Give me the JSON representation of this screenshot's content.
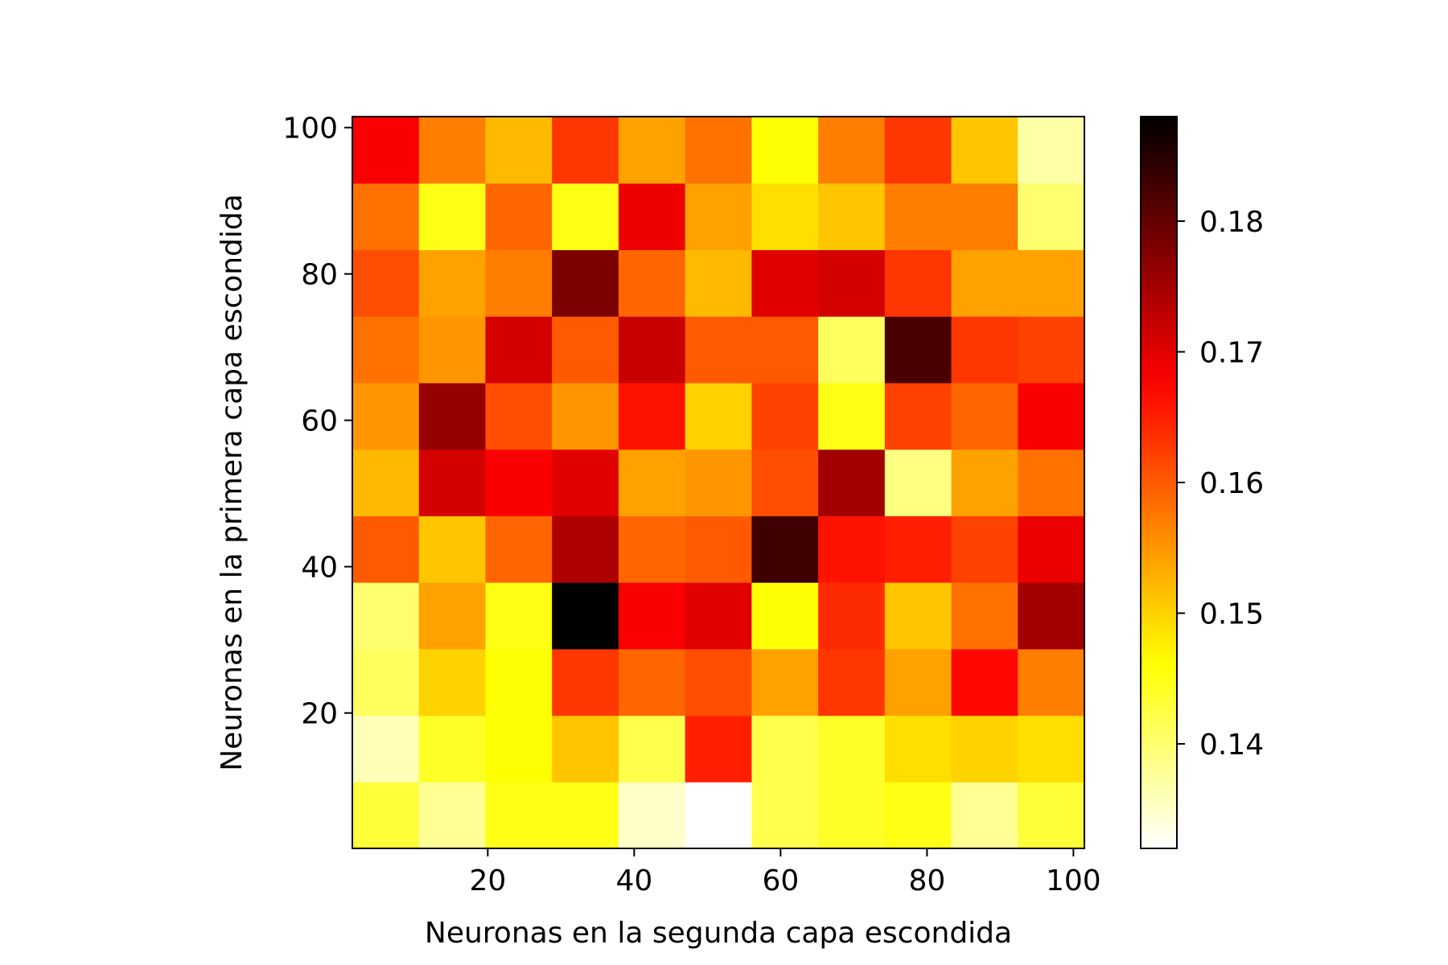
{
  "chart_data": {
    "type": "heatmap",
    "title": "",
    "xlabel": "Neuronas en la segunda capa escondida",
    "ylabel": "Neuronas en la primera capa escondida",
    "x": [
      10,
      19,
      28,
      37,
      46,
      55,
      64,
      73,
      82,
      91,
      100
    ],
    "y": [
      10,
      19,
      28,
      37,
      46,
      55,
      64,
      73,
      82,
      91,
      100
    ],
    "xlim": [
      1.5,
      101.5
    ],
    "ylim": [
      1.5,
      101.5
    ],
    "xticks": [
      20,
      40,
      60,
      80,
      100
    ],
    "yticks": [
      20,
      40,
      60,
      80,
      100
    ],
    "colormap": "hot_r",
    "colorbar": {
      "vmin": 0.132,
      "vmax": 0.188,
      "ticks": [
        0.14,
        0.15,
        0.16,
        0.17,
        0.18
      ]
    },
    "z": [
      [
        0.143,
        0.138,
        0.145,
        0.145,
        0.135,
        0.132,
        0.142,
        0.144,
        0.145,
        0.138,
        0.143
      ],
      [
        0.136,
        0.144,
        0.146,
        0.151,
        0.142,
        0.165,
        0.142,
        0.144,
        0.149,
        0.15,
        0.149
      ],
      [
        0.141,
        0.15,
        0.146,
        0.163,
        0.159,
        0.161,
        0.154,
        0.163,
        0.154,
        0.167,
        0.157
      ],
      [
        0.14,
        0.154,
        0.145,
        0.188,
        0.168,
        0.17,
        0.146,
        0.164,
        0.151,
        0.158,
        0.175
      ],
      [
        0.16,
        0.151,
        0.159,
        0.174,
        0.159,
        0.16,
        0.183,
        0.166,
        0.165,
        0.162,
        0.169
      ],
      [
        0.152,
        0.171,
        0.168,
        0.17,
        0.154,
        0.155,
        0.161,
        0.175,
        0.139,
        0.154,
        0.158
      ],
      [
        0.155,
        0.176,
        0.161,
        0.155,
        0.166,
        0.15,
        0.162,
        0.145,
        0.162,
        0.159,
        0.168
      ],
      [
        0.158,
        0.155,
        0.171,
        0.16,
        0.172,
        0.16,
        0.16,
        0.141,
        0.182,
        0.163,
        0.162
      ],
      [
        0.161,
        0.154,
        0.157,
        0.178,
        0.159,
        0.152,
        0.17,
        0.171,
        0.163,
        0.154,
        0.154
      ],
      [
        0.158,
        0.145,
        0.159,
        0.145,
        0.169,
        0.154,
        0.149,
        0.151,
        0.157,
        0.157,
        0.14
      ],
      [
        0.168,
        0.157,
        0.152,
        0.163,
        0.154,
        0.158,
        0.146,
        0.157,
        0.163,
        0.151,
        0.137
      ]
    ]
  }
}
